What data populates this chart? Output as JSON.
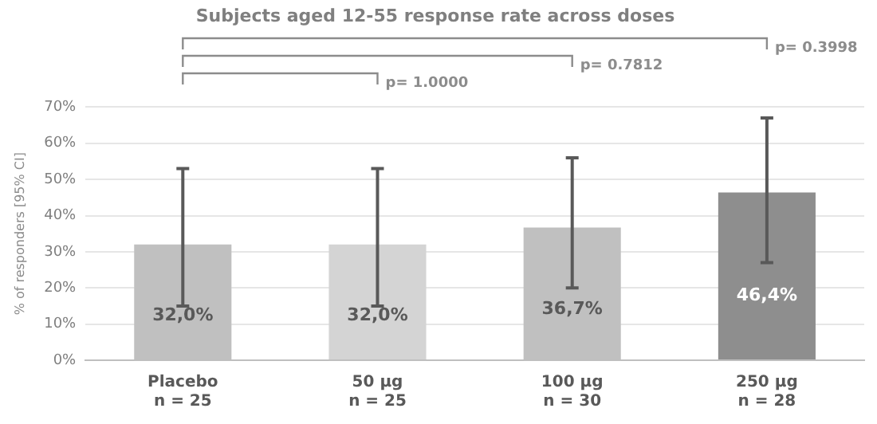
{
  "chart_data": {
    "type": "bar",
    "title": "Subjects aged 12-55 response rate across doses",
    "ylabel": "% of responders [95% CI]",
    "categories": [
      "Placebo\nn = 25",
      "50 µg\nn = 25",
      "100 µg\nn = 30",
      "250 µg\nn = 28"
    ],
    "values": [
      32.0,
      32.0,
      36.7,
      46.4
    ],
    "colors": [
      "#c0c0c0",
      "#d4d4d4",
      "#c0c0c0",
      "#8e8e8e"
    ],
    "errors": [
      [
        15,
        53
      ],
      [
        15,
        53
      ],
      [
        20,
        56
      ],
      [
        27,
        67
      ]
    ],
    "value_labels": [
      "32,0%",
      "32,0%",
      "36,7%",
      "46,4%"
    ],
    "ylim": [
      0,
      70
    ],
    "yticks": [
      {
        "value": 0,
        "label": "0%"
      },
      {
        "value": 10,
        "label": "10%"
      },
      {
        "value": 20,
        "label": "20%"
      },
      {
        "value": 30,
        "label": "30%"
      },
      {
        "value": 40,
        "label": "40%"
      },
      {
        "value": 50,
        "label": "50%"
      },
      {
        "value": 60,
        "label": "60%"
      },
      {
        "value": 70,
        "label": "70%"
      }
    ],
    "grid": "y",
    "legend": false,
    "annotations": [
      "p= 0.3998",
      "p= 0.7812",
      "p= 1.0000"
    ]
  }
}
